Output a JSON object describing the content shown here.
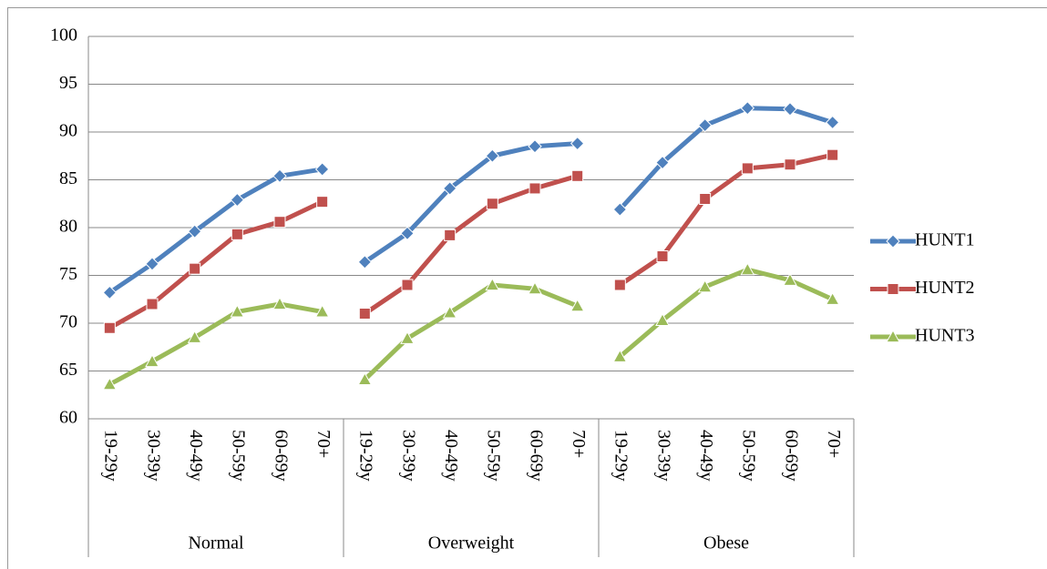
{
  "chart_data": {
    "type": "line",
    "groups": [
      {
        "label": "Normal",
        "categories": [
          "19-29y",
          "30-39y",
          "40-49y",
          "50-59y",
          "60-69y",
          "70+"
        ]
      },
      {
        "label": "Overweight",
        "categories": [
          "19-29y",
          "30-39y",
          "40-49y",
          "50-59y",
          "60-69y",
          "70+"
        ]
      },
      {
        "label": "Obese",
        "categories": [
          "19-29y",
          "30-39y",
          "40-49y",
          "50-59y",
          "60-69y",
          "70+"
        ]
      }
    ],
    "series": [
      {
        "name": "HUNT1",
        "color": "#4f81bd",
        "marker": "diamond",
        "values": [
          [
            73.2,
            76.2,
            79.6,
            82.9,
            85.4,
            86.1
          ],
          [
            76.4,
            79.4,
            84.1,
            87.5,
            88.5,
            88.8
          ],
          [
            81.9,
            86.8,
            90.7,
            92.5,
            92.4,
            91.0
          ]
        ]
      },
      {
        "name": "HUNT2",
        "color": "#c0504d",
        "marker": "square",
        "values": [
          [
            69.5,
            72.0,
            75.7,
            79.3,
            80.6,
            82.7
          ],
          [
            71.0,
            74.0,
            79.2,
            82.5,
            84.1,
            85.4
          ],
          [
            74.0,
            77.0,
            83.0,
            86.2,
            86.6,
            87.6
          ]
        ]
      },
      {
        "name": "HUNT3",
        "color": "#9bbb59",
        "marker": "triangle",
        "values": [
          [
            63.6,
            66.0,
            68.5,
            71.2,
            72.0,
            71.2
          ],
          [
            64.1,
            68.4,
            71.1,
            74.0,
            73.6,
            71.8
          ],
          [
            66.5,
            70.3,
            73.8,
            75.6,
            74.5,
            72.5
          ]
        ]
      }
    ],
    "ylim": [
      60,
      100
    ],
    "yticks": [
      60,
      65,
      70,
      75,
      80,
      85,
      90,
      95,
      100
    ],
    "grid": true
  }
}
